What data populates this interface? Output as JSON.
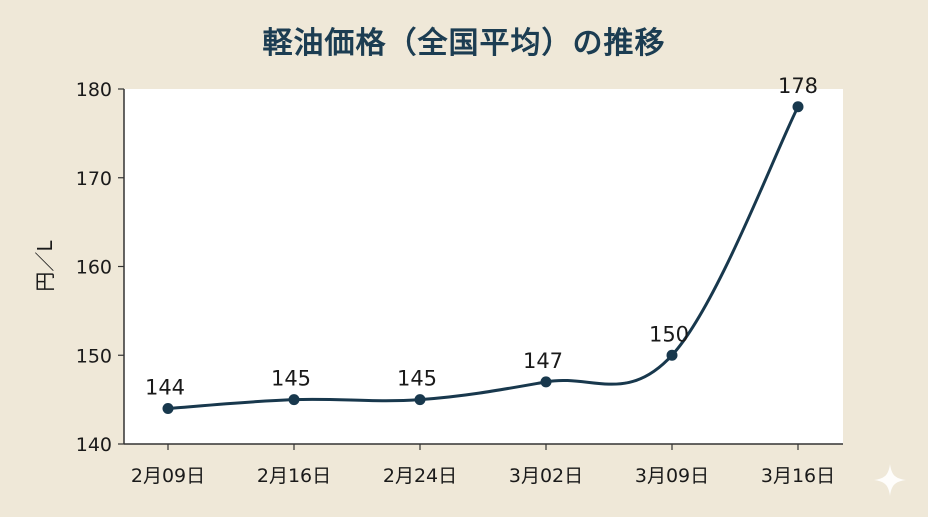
{
  "chart_data": {
    "type": "line",
    "title": "軽油価格（全国平均）の推移",
    "ylabel": "円／L",
    "xlabel": "",
    "categories": [
      "2月09日",
      "2月16日",
      "2月24日",
      "3月02日",
      "3月09日",
      "3月16日"
    ],
    "series": [
      {
        "values": [
          144,
          145,
          145,
          147,
          150,
          178
        ]
      }
    ],
    "ylim": [
      140,
      180
    ],
    "yticks": [
      140,
      150,
      160,
      170,
      180
    ],
    "data_labels": true,
    "grid": false,
    "line_color": "#18384d",
    "background": "#efe8d8",
    "plot_background": "#ffffff"
  },
  "decorations": {
    "corner_icon": "sparkle-icon"
  }
}
